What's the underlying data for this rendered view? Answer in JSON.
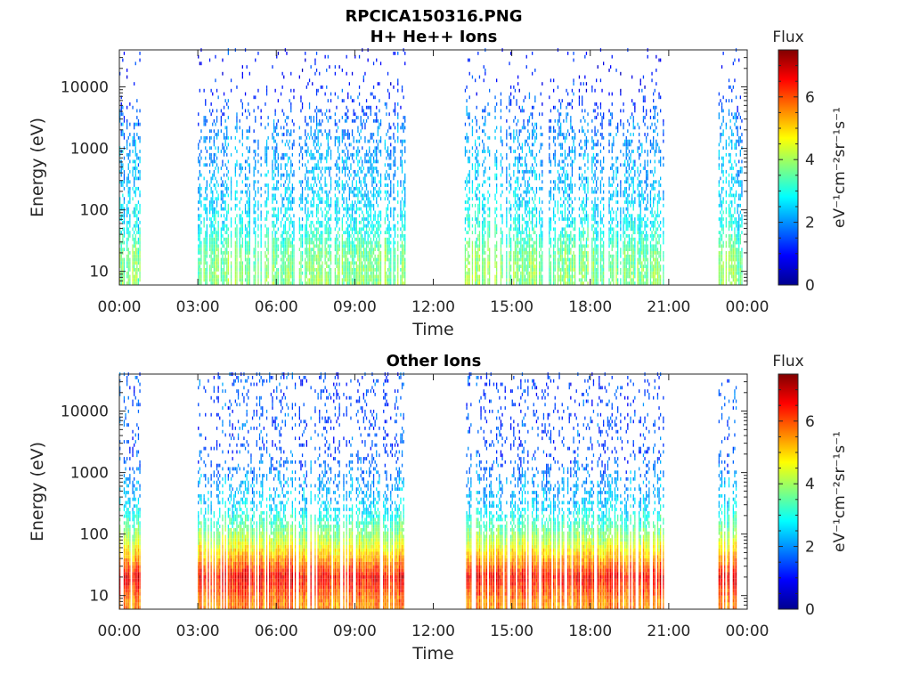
{
  "figure_title": "RPCICA150316.PNG",
  "chart_data": [
    {
      "type": "heatmap",
      "title": "H+ He++ Ions",
      "xlabel": "Time",
      "ylabel": "Energy (eV)",
      "x_ticks": [
        "00:00",
        "03:00",
        "06:00",
        "09:00",
        "12:00",
        "15:00",
        "18:00",
        "21:00",
        "00:00"
      ],
      "x_range_hours": [
        0,
        24
      ],
      "y_scale": "log",
      "y_range": [
        6,
        40000
      ],
      "y_ticks": [
        10,
        100,
        1000,
        10000
      ],
      "y_tick_labels": [
        "10",
        "100",
        "1000",
        "10000"
      ],
      "colorbar": {
        "label": "Flux",
        "unit_label": "eV⁻¹cm⁻²sr⁻¹s⁻¹",
        "range": [
          0,
          7.5
        ],
        "ticks": [
          0,
          2,
          4,
          6
        ],
        "colormap": "jet"
      },
      "data_intervals_hours": [
        [
          0.0,
          0.8
        ],
        [
          3.0,
          10.9
        ],
        [
          13.2,
          20.8
        ],
        [
          22.9,
          23.8
        ]
      ],
      "flux_profile": {
        "energies_eV": [
          8,
          20,
          60,
          200,
          600,
          1500,
          4000,
          12000
        ],
        "flux": [
          3.8,
          3.6,
          2.8,
          2.4,
          2.2,
          2.0,
          1.6,
          1.1
        ]
      }
    },
    {
      "type": "heatmap",
      "title": "Other Ions",
      "xlabel": "Time",
      "ylabel": "Energy (eV)",
      "x_ticks": [
        "00:00",
        "03:00",
        "06:00",
        "09:00",
        "12:00",
        "15:00",
        "18:00",
        "21:00",
        "00:00"
      ],
      "x_range_hours": [
        0,
        24
      ],
      "y_scale": "log",
      "y_range": [
        6,
        40000
      ],
      "y_ticks": [
        10,
        100,
        1000,
        10000
      ],
      "y_tick_labels": [
        "10",
        "100",
        "1000",
        "10000"
      ],
      "colorbar": {
        "label": "Flux",
        "unit_label": "eV⁻¹cm⁻²sr⁻¹s⁻¹",
        "range": [
          0,
          7.5
        ],
        "ticks": [
          0,
          2,
          4,
          6
        ],
        "colormap": "jet"
      },
      "data_intervals_hours": [
        [
          0.0,
          0.8
        ],
        [
          3.0,
          10.9
        ],
        [
          13.2,
          20.8
        ],
        [
          22.9,
          23.8
        ]
      ],
      "flux_profile": {
        "energies_eV": [
          8,
          20,
          40,
          80,
          150,
          300,
          700,
          2000
        ],
        "flux": [
          5.6,
          6.6,
          5.3,
          4.2,
          3.3,
          2.5,
          2.1,
          1.5
        ]
      }
    }
  ]
}
